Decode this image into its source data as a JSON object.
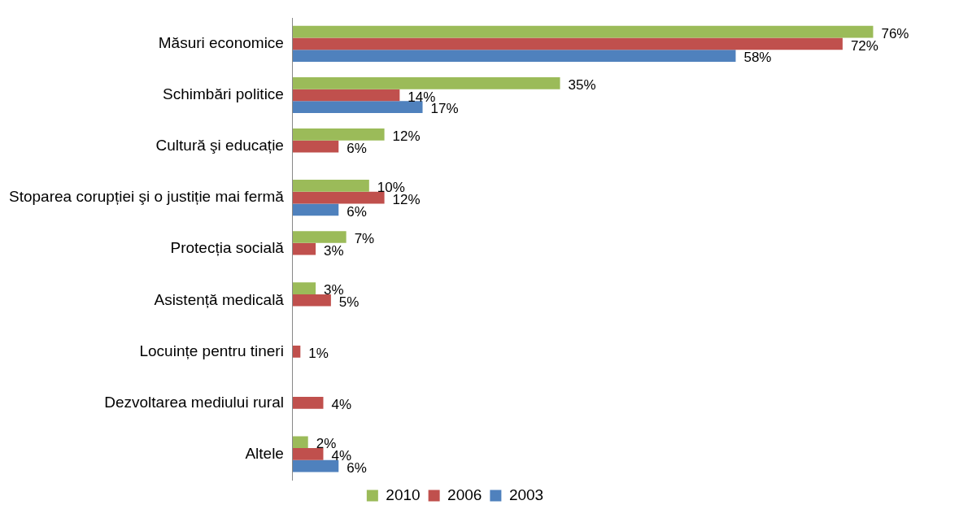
{
  "chart_data": {
    "type": "bar",
    "orientation": "horizontal",
    "legend": "bottom",
    "grid": false,
    "categories": [
      "Măsuri economice",
      "Schimbări politice",
      "Cultură şi educație",
      "Stoparea corupției şi o justiție mai fermă",
      "Protecția socială",
      "Asistență medicală",
      "Locuințe pentru tineri",
      "Dezvoltarea mediului rural",
      "Altele"
    ],
    "series": [
      {
        "name": "2010",
        "color": "#9bbb59",
        "values": [
          76,
          35,
          12,
          10,
          7,
          3,
          null,
          null,
          2
        ],
        "value_labels": [
          "76%",
          "35%",
          "12%",
          "10%",
          "7%",
          "3%",
          null,
          null,
          "2%"
        ]
      },
      {
        "name": "2006",
        "color": "#c0504d",
        "values": [
          72,
          14,
          6,
          12,
          3,
          5,
          1,
          4,
          4
        ],
        "value_labels": [
          "72%",
          "14%",
          "6%",
          "12%",
          "3%",
          "5%",
          "1%",
          "4%",
          "4%"
        ]
      },
      {
        "name": "2003",
        "color": "#4f81bd",
        "values": [
          58,
          17,
          null,
          6,
          null,
          null,
          null,
          null,
          6
        ],
        "value_labels": [
          "58%",
          "17%",
          null,
          "6%",
          null,
          null,
          null,
          null,
          "6%"
        ]
      }
    ]
  }
}
